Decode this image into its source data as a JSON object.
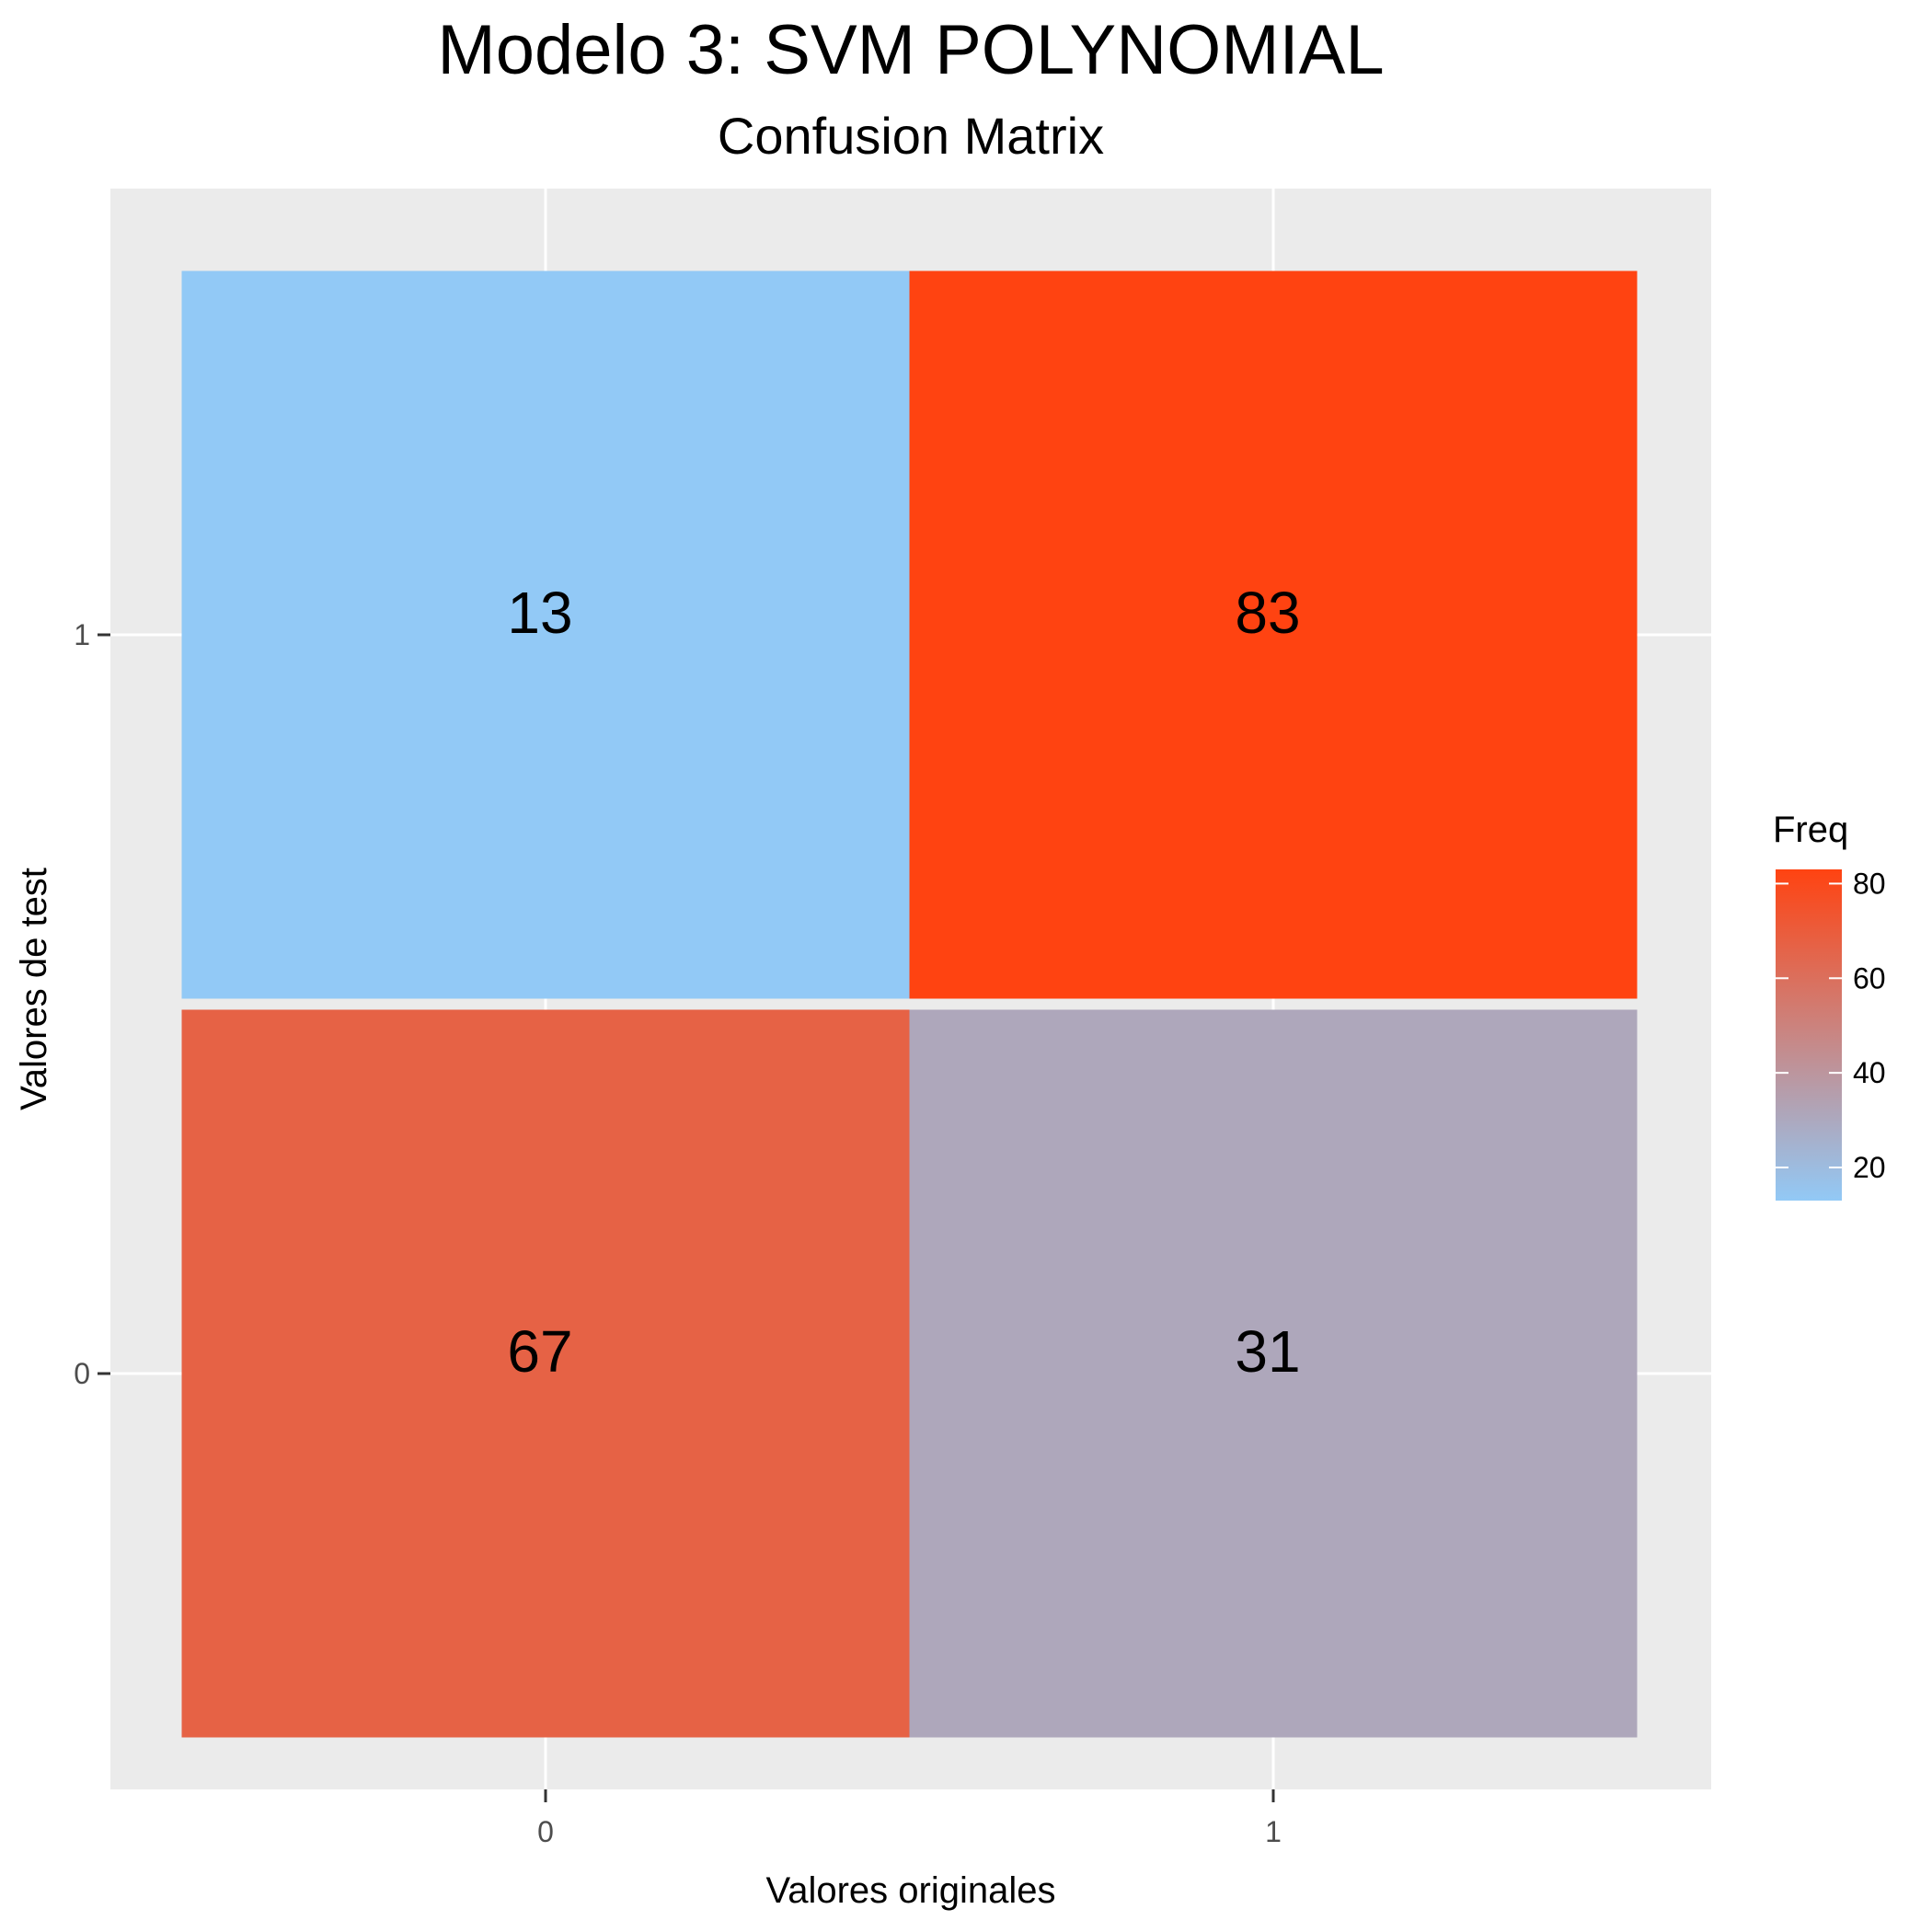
{
  "chart_data": {
    "type": "heatmap",
    "title": "Modelo 3: SVM POLYNOMIAL",
    "subtitle": "Confusion Matrix",
    "xlabel": "Valores originales",
    "ylabel": "Valores de test",
    "x_categories": [
      "0",
      "1"
    ],
    "y_categories": [
      "0",
      "1"
    ],
    "cells": [
      {
        "x": "0",
        "y": "1",
        "value": 13
      },
      {
        "x": "1",
        "y": "1",
        "value": 83
      },
      {
        "x": "0",
        "y": "0",
        "value": 67
      },
      {
        "x": "1",
        "y": "0",
        "value": 31
      }
    ],
    "legend": {
      "title": "Freq",
      "ticks": [
        20,
        40,
        60,
        80
      ],
      "range": [
        13,
        83
      ],
      "low_color": "#92C9F6",
      "high_color": "#FF4311",
      "placement": "right"
    },
    "panel_background": "#EBEBEB",
    "grid": true
  }
}
